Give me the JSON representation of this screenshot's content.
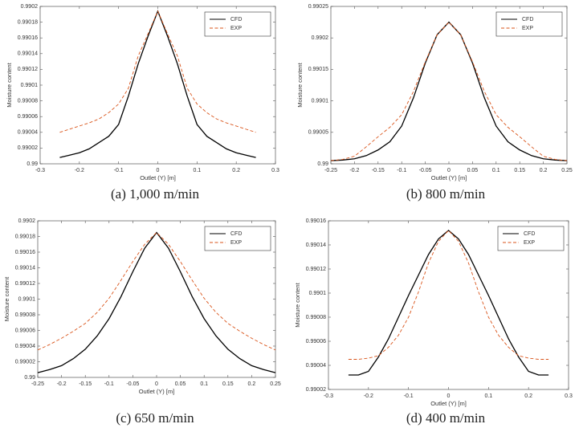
{
  "chart_data": [
    {
      "type": "line",
      "caption": "(a) 1,000 m/min",
      "xlabel": "Outlet (Y) [m]",
      "ylabel": "Moisture content",
      "x": [
        -0.25,
        -0.225,
        -0.2,
        -0.175,
        -0.15,
        -0.125,
        -0.1,
        -0.075,
        -0.05,
        -0.025,
        0,
        0.025,
        0.05,
        0.075,
        0.1,
        0.125,
        0.15,
        0.175,
        0.2,
        0.225,
        0.25
      ],
      "xlim": [
        -0.3,
        0.3
      ],
      "xticks": [
        -0.3,
        -0.2,
        -0.1,
        0,
        0.1,
        0.2,
        0.3
      ],
      "ylim": [
        0.99,
        0.9902
      ],
      "yticks": [
        0.99,
        0.99002,
        0.99004,
        0.99006,
        0.99008,
        0.9901,
        0.99012,
        0.99014,
        0.99016,
        0.99018,
        0.9902
      ],
      "legend": "upper right",
      "series": [
        {
          "name": "CFD",
          "color": "#000000",
          "line_style": "solid",
          "values": [
            0.990008,
            0.990011,
            0.990014,
            0.990019,
            0.990027,
            0.990035,
            0.99005,
            0.990086,
            0.990127,
            0.990162,
            0.990194,
            0.990162,
            0.990127,
            0.990086,
            0.99005,
            0.990035,
            0.990027,
            0.990019,
            0.990014,
            0.990011,
            0.990008
          ]
        },
        {
          "name": "EXP",
          "color": "#d95319",
          "line_style": "dashed",
          "values": [
            0.99004,
            0.990044,
            0.990048,
            0.990052,
            0.990057,
            0.990065,
            0.990076,
            0.990096,
            0.990137,
            0.990165,
            0.990194,
            0.990165,
            0.990137,
            0.990096,
            0.990076,
            0.990065,
            0.990057,
            0.990052,
            0.990048,
            0.990044,
            0.99004
          ]
        }
      ]
    },
    {
      "type": "line",
      "caption": "(b) 800 m/min",
      "xlabel": "Outlet (Y) [m]",
      "ylabel": "Moisture content",
      "x": [
        -0.25,
        -0.225,
        -0.2,
        -0.175,
        -0.15,
        -0.125,
        -0.1,
        -0.075,
        -0.05,
        -0.025,
        0,
        0.025,
        0.05,
        0.075,
        0.1,
        0.125,
        0.15,
        0.175,
        0.2,
        0.225,
        0.25
      ],
      "xlim": [
        -0.25,
        0.25
      ],
      "xticks": [
        -0.25,
        -0.2,
        -0.15,
        -0.1,
        -0.05,
        0,
        0.05,
        0.1,
        0.15,
        0.2,
        0.25
      ],
      "ylim": [
        0.99,
        0.99025
      ],
      "yticks": [
        0.99,
        0.99005,
        0.9901,
        0.99015,
        0.9902,
        0.99025
      ],
      "legend": "upper right",
      "series": [
        {
          "name": "CFD",
          "color": "#000000",
          "line_style": "solid",
          "values": [
            0.990005,
            0.990006,
            0.990008,
            0.990013,
            0.990022,
            0.990035,
            0.99006,
            0.990105,
            0.99016,
            0.990205,
            0.990225,
            0.990205,
            0.99016,
            0.990105,
            0.99006,
            0.990035,
            0.990022,
            0.990013,
            0.990008,
            0.990006,
            0.990005
          ]
        },
        {
          "name": "EXP",
          "color": "#d95319",
          "line_style": "dashed",
          "values": [
            0.990005,
            0.990007,
            0.990012,
            0.990027,
            0.990043,
            0.990058,
            0.990078,
            0.990115,
            0.990162,
            0.990205,
            0.990225,
            0.990205,
            0.990162,
            0.990115,
            0.990078,
            0.990058,
            0.990043,
            0.990027,
            0.990012,
            0.990007,
            0.990005
          ]
        }
      ]
    },
    {
      "type": "line",
      "caption": "(c) 650 m/min",
      "xlabel": "Outlet (Y) [m]",
      "ylabel": "Moisture content",
      "x": [
        -0.25,
        -0.225,
        -0.2,
        -0.175,
        -0.15,
        -0.125,
        -0.1,
        -0.075,
        -0.05,
        -0.025,
        0,
        0.025,
        0.05,
        0.075,
        0.1,
        0.125,
        0.15,
        0.175,
        0.2,
        0.225,
        0.25
      ],
      "xlim": [
        -0.25,
        0.25
      ],
      "xticks": [
        -0.25,
        -0.2,
        -0.15,
        -0.1,
        -0.05,
        0,
        0.05,
        0.1,
        0.15,
        0.2,
        0.25
      ],
      "ylim": [
        0.99,
        0.9902
      ],
      "yticks": [
        0.99,
        0.99002,
        0.99004,
        0.99006,
        0.99008,
        0.9901,
        0.99012,
        0.99014,
        0.99016,
        0.99018,
        0.9902
      ],
      "legend": "upper right",
      "series": [
        {
          "name": "CFD",
          "color": "#000000",
          "line_style": "solid",
          "values": [
            0.990006,
            0.99001,
            0.990015,
            0.990024,
            0.990036,
            0.990053,
            0.990075,
            0.990103,
            0.990135,
            0.990165,
            0.990185,
            0.990165,
            0.990135,
            0.990103,
            0.990075,
            0.990053,
            0.990036,
            0.990024,
            0.990015,
            0.99001,
            0.990006
          ]
        },
        {
          "name": "EXP",
          "color": "#d95319",
          "line_style": "dashed",
          "values": [
            0.990035,
            0.990042,
            0.99005,
            0.990059,
            0.990069,
            0.990083,
            0.990101,
            0.990124,
            0.990148,
            0.99017,
            0.990185,
            0.99017,
            0.990148,
            0.990124,
            0.990101,
            0.990083,
            0.990069,
            0.990059,
            0.99005,
            0.990042,
            0.990035
          ]
        }
      ]
    },
    {
      "type": "line",
      "caption": "(d) 400 m/min",
      "xlabel": "Outlet (Y) [m]",
      "ylabel": "Moisture content",
      "x": [
        -0.25,
        -0.225,
        -0.2,
        -0.175,
        -0.15,
        -0.125,
        -0.1,
        -0.075,
        -0.05,
        -0.025,
        0,
        0.025,
        0.05,
        0.075,
        0.1,
        0.125,
        0.15,
        0.175,
        0.2,
        0.225,
        0.25
      ],
      "xlim": [
        -0.3,
        0.3
      ],
      "xticks": [
        -0.3,
        -0.2,
        -0.1,
        0,
        0.1,
        0.2,
        0.3
      ],
      "ylim": [
        0.99002,
        0.99016
      ],
      "yticks": [
        0.99002,
        0.99004,
        0.99006,
        0.99008,
        0.9901,
        0.99012,
        0.99014,
        0.99016
      ],
      "legend": "upper right",
      "series": [
        {
          "name": "CFD",
          "color": "#000000",
          "line_style": "solid",
          "values": [
            0.990032,
            0.990032,
            0.990035,
            0.990047,
            0.990062,
            0.99008,
            0.990098,
            0.990115,
            0.990132,
            0.990145,
            0.990152,
            0.990145,
            0.990132,
            0.990115,
            0.990098,
            0.99008,
            0.990062,
            0.990047,
            0.990035,
            0.990032,
            0.990032
          ]
        },
        {
          "name": "EXP",
          "color": "#d95319",
          "line_style": "dashed",
          "values": [
            0.990045,
            0.990045,
            0.990046,
            0.990048,
            0.990055,
            0.990065,
            0.99008,
            0.990101,
            0.990125,
            0.990143,
            0.990152,
            0.990143,
            0.990125,
            0.990101,
            0.99008,
            0.990065,
            0.990055,
            0.990048,
            0.990046,
            0.990045,
            0.990045
          ]
        }
      ]
    }
  ]
}
